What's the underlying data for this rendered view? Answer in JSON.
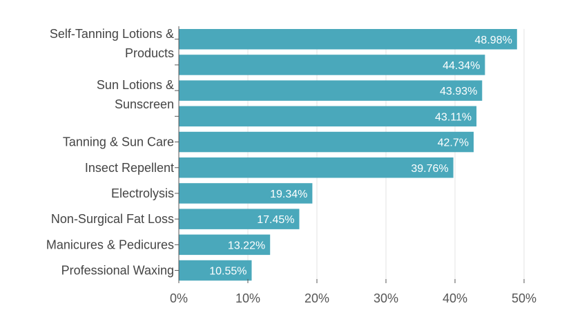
{
  "chart_data": {
    "type": "bar",
    "orientation": "horizontal",
    "categories": [
      [
        "Self-Tanning Lotions &",
        "Products"
      ],
      [],
      [
        "Sun Lotions &",
        "Sunscreen"
      ],
      [],
      [
        "Tanning & Sun Care"
      ],
      [
        "Insect Repellent"
      ],
      [
        "Electrolysis"
      ],
      [
        "Non-Surgical Fat Loss"
      ],
      [
        "Manicures & Pedicures"
      ],
      [
        "Professional Waxing"
      ]
    ],
    "values": [
      48.98,
      44.34,
      43.93,
      43.11,
      42.7,
      39.76,
      19.34,
      17.45,
      13.22,
      10.55
    ],
    "value_labels": [
      "48.98%",
      "44.34%",
      "43.93%",
      "43.11%",
      "42.7%",
      "39.76%",
      "19.34%",
      "17.45%",
      "13.22%",
      "10.55%"
    ],
    "xlim": [
      0,
      50
    ],
    "x_ticks": [
      0,
      10,
      20,
      30,
      40,
      50
    ],
    "x_tick_labels": [
      "0%",
      "10%",
      "20%",
      "30%",
      "40%",
      "50%"
    ],
    "grid": true,
    "bar_color": "#4aa8bb"
  }
}
